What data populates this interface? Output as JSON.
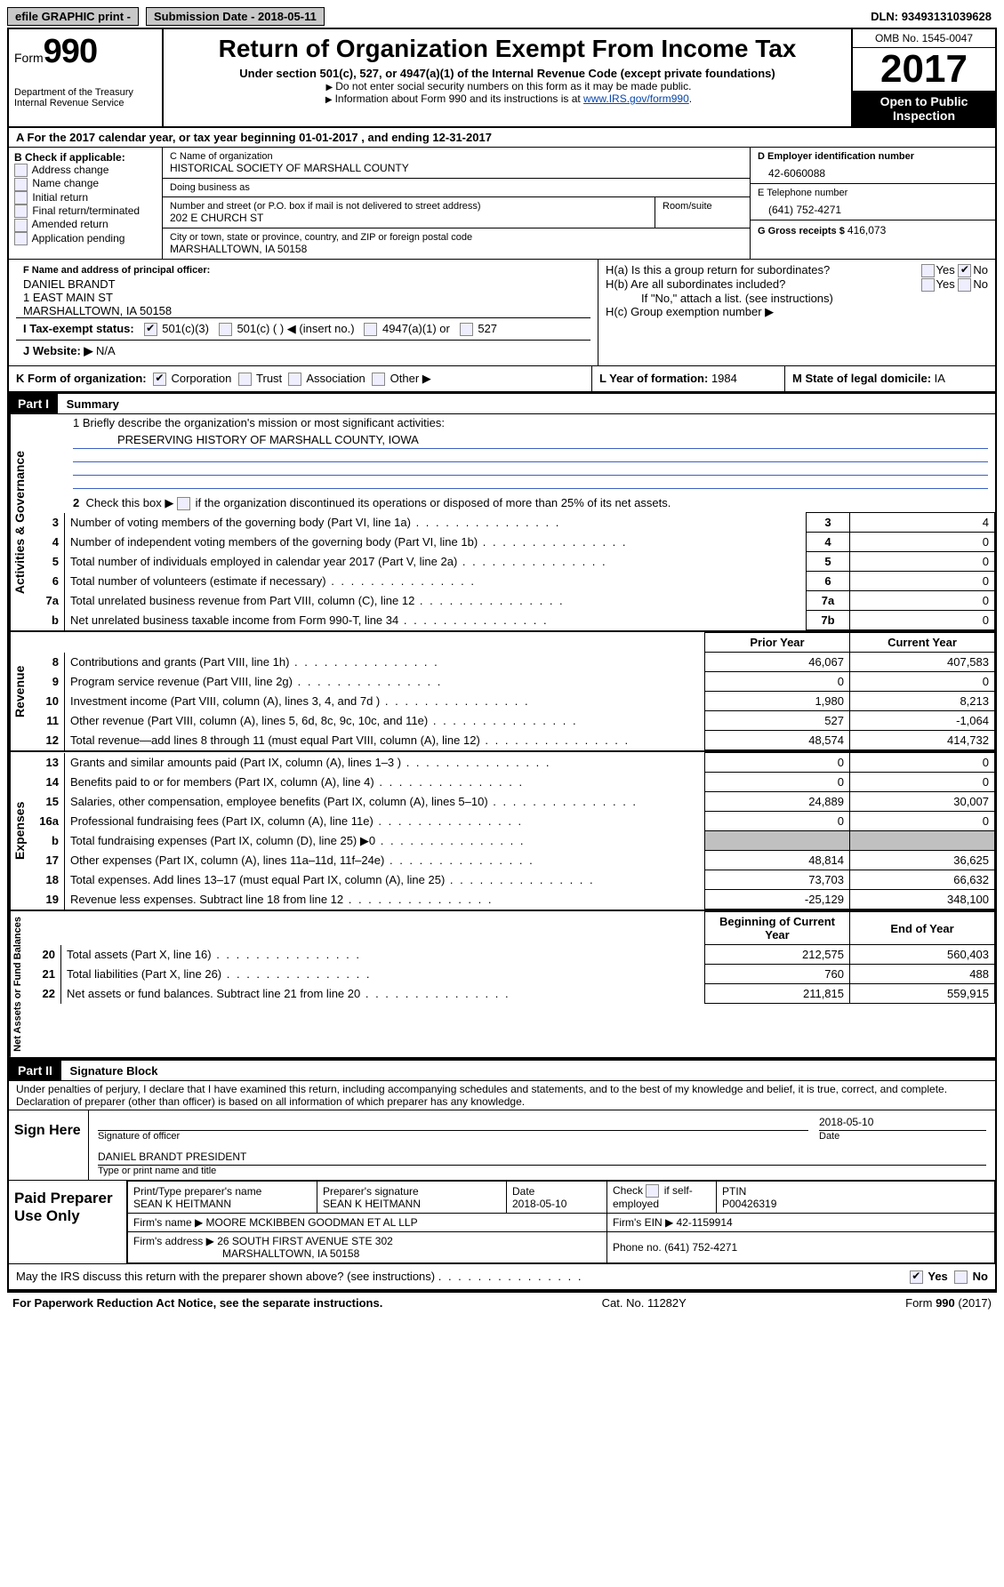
{
  "topbar": {
    "efile": "efile GRAPHIC print - ",
    "submission_label": "Submission Date - ",
    "submission_date": "2018-05-11",
    "dln_label": "DLN: ",
    "dln": "93493131039628"
  },
  "header": {
    "form_label": "Form",
    "form_number": "990",
    "dept": "Department of the Treasury",
    "irs": "Internal Revenue Service",
    "title": "Return of Organization Exempt From Income Tax",
    "subtitle": "Under section 501(c), 527, or 4947(a)(1) of the Internal Revenue Code (except private foundations)",
    "note1": "Do not enter social security numbers on this form as it may be made public.",
    "note2_prefix": "Information about Form 990 and its instructions is at ",
    "note2_link": "www.IRS.gov/form990",
    "omb": "OMB No. 1545-0047",
    "year": "2017",
    "open": "Open to Public Inspection"
  },
  "rowA": {
    "prefix": "A  For the 2017 calendar year, or tax year beginning ",
    "begin": "01-01-2017",
    "mid": "   , and ending ",
    "end": "12-31-2017"
  },
  "colB": {
    "title": "B Check if applicable:",
    "items": [
      "Address change",
      "Name change",
      "Initial return",
      "Final return/terminated",
      "Amended return",
      "Application pending"
    ]
  },
  "colC": {
    "name_label": "C Name of organization",
    "name": "HISTORICAL SOCIETY OF MARSHALL COUNTY",
    "dba_label": "Doing business as",
    "dba": "",
    "street_label": "Number and street (or P.O. box if mail is not delivered to street address)",
    "room_label": "Room/suite",
    "street": "202 E CHURCH ST",
    "city_label": "City or town, state or province, country, and ZIP or foreign postal code",
    "city": "MARSHALLTOWN, IA  50158"
  },
  "colD": {
    "ein_label": "D Employer identification number",
    "ein": "42-6060088",
    "phone_label": "E Telephone number",
    "phone": "(641) 752-4271",
    "gross_label": "G Gross receipts $ ",
    "gross": "416,073"
  },
  "rowF": {
    "label": "F  Name and address of principal officer:",
    "name": "DANIEL BRANDT",
    "addr1": "1 EAST MAIN ST",
    "addr2": "MARSHALLTOWN, IA  50158"
  },
  "rowH": {
    "ha": "H(a)  Is this a group return for subordinates?",
    "hb": "H(b)  Are all subordinates included?",
    "hb_note": "If \"No,\" attach a list. (see instructions)",
    "hc": "H(c)  Group exemption number ▶",
    "yes": "Yes",
    "no": "No"
  },
  "rowI": {
    "label": "I  Tax-exempt status:",
    "o1": "501(c)(3)",
    "o2": "501(c) (  ) ◀ (insert no.)",
    "o3": "4947(a)(1) or",
    "o4": "527"
  },
  "rowJ": {
    "label": "J  Website: ▶ ",
    "val": "N/A"
  },
  "rowK": {
    "label": "K Form of organization:",
    "opts": [
      "Corporation",
      "Trust",
      "Association",
      "Other ▶"
    ],
    "l_label": "L Year of formation: ",
    "l_val": "1984",
    "m_label": "M State of legal domicile: ",
    "m_val": "IA"
  },
  "part1": {
    "tag": "Part I",
    "title": "Summary",
    "l1": "1  Briefly describe the organization's mission or most significant activities:",
    "mission": "PRESERVING HISTORY OF MARSHALL COUNTY, IOWA",
    "l2": "2  Check this box ▶        if the organization discontinued its operations or disposed of more than 25% of its net assets."
  },
  "vlabels": {
    "gov": "Activities & Governance",
    "rev": "Revenue",
    "exp": "Expenses",
    "net": "Net Assets or Fund Balances"
  },
  "govTable": [
    {
      "n": "3",
      "desc": "Number of voting members of the governing body (Part VI, line 1a)",
      "col": "3",
      "val": "4"
    },
    {
      "n": "4",
      "desc": "Number of independent voting members of the governing body (Part VI, line 1b)",
      "col": "4",
      "val": "0"
    },
    {
      "n": "5",
      "desc": "Total number of individuals employed in calendar year 2017 (Part V, line 2a)",
      "col": "5",
      "val": "0"
    },
    {
      "n": "6",
      "desc": "Total number of volunteers (estimate if necessary)",
      "col": "6",
      "val": "0"
    },
    {
      "n": "7a",
      "desc": "Total unrelated business revenue from Part VIII, column (C), line 12",
      "col": "7a",
      "val": "0"
    },
    {
      "n": "b",
      "desc": "Net unrelated business taxable income from Form 990-T, line 34",
      "col": "7b",
      "val": "0"
    }
  ],
  "yearHdr": {
    "prior": "Prior Year",
    "current": "Current Year",
    "boy": "Beginning of Current Year",
    "eoy": "End of Year"
  },
  "revTable": [
    {
      "n": "8",
      "desc": "Contributions and grants (Part VIII, line 1h)",
      "p": "46,067",
      "c": "407,583"
    },
    {
      "n": "9",
      "desc": "Program service revenue (Part VIII, line 2g)",
      "p": "0",
      "c": "0"
    },
    {
      "n": "10",
      "desc": "Investment income (Part VIII, column (A), lines 3, 4, and 7d )",
      "p": "1,980",
      "c": "8,213"
    },
    {
      "n": "11",
      "desc": "Other revenue (Part VIII, column (A), lines 5, 6d, 8c, 9c, 10c, and 11e)",
      "p": "527",
      "c": "-1,064"
    },
    {
      "n": "12",
      "desc": "Total revenue—add lines 8 through 11 (must equal Part VIII, column (A), line 12)",
      "p": "48,574",
      "c": "414,732"
    }
  ],
  "expTable": [
    {
      "n": "13",
      "desc": "Grants and similar amounts paid (Part IX, column (A), lines 1–3 )",
      "p": "0",
      "c": "0"
    },
    {
      "n": "14",
      "desc": "Benefits paid to or for members (Part IX, column (A), line 4)",
      "p": "0",
      "c": "0"
    },
    {
      "n": "15",
      "desc": "Salaries, other compensation, employee benefits (Part IX, column (A), lines 5–10)",
      "p": "24,889",
      "c": "30,007"
    },
    {
      "n": "16a",
      "desc": "Professional fundraising fees (Part IX, column (A), line 11e)",
      "p": "0",
      "c": "0"
    },
    {
      "n": "b",
      "desc": "Total fundraising expenses (Part IX, column (D), line 25) ▶0",
      "p": "grey",
      "c": "grey"
    },
    {
      "n": "17",
      "desc": "Other expenses (Part IX, column (A), lines 11a–11d, 11f–24e)",
      "p": "48,814",
      "c": "36,625"
    },
    {
      "n": "18",
      "desc": "Total expenses. Add lines 13–17 (must equal Part IX, column (A), line 25)",
      "p": "73,703",
      "c": "66,632"
    },
    {
      "n": "19",
      "desc": "Revenue less expenses. Subtract line 18 from line 12",
      "p": "-25,129",
      "c": "348,100"
    }
  ],
  "netTable": [
    {
      "n": "20",
      "desc": "Total assets (Part X, line 16)",
      "p": "212,575",
      "c": "560,403"
    },
    {
      "n": "21",
      "desc": "Total liabilities (Part X, line 26)",
      "p": "760",
      "c": "488"
    },
    {
      "n": "22",
      "desc": "Net assets or fund balances. Subtract line 21 from line 20",
      "p": "211,815",
      "c": "559,915"
    }
  ],
  "part2": {
    "tag": "Part II",
    "title": "Signature Block",
    "perjury": "Under penalties of perjury, I declare that I have examined this return, including accompanying schedules and statements, and to the best of my knowledge and belief, it is true, correct, and complete. Declaration of preparer (other than officer) is based on all information of which preparer has any knowledge.",
    "sign_here": "Sign Here",
    "sig_officer": "Signature of officer",
    "sig_date": "2018-05-10",
    "date_lbl": "Date",
    "officer_name": "DANIEL BRANDT PRESIDENT",
    "type_name": "Type or print name and title",
    "paid": "Paid Preparer Use Only",
    "prep_name_lbl": "Print/Type preparer's name",
    "prep_name": "SEAN K HEITMANN",
    "prep_sig_lbl": "Preparer's signature",
    "prep_sig": "SEAN K HEITMANN",
    "prep_date_lbl": "Date",
    "prep_date": "2018-05-10",
    "self_emp": "Check        if self-employed",
    "ptin_lbl": "PTIN",
    "ptin": "P00426319",
    "firm_name_lbl": "Firm's name     ▶ ",
    "firm_name": "MOORE MCKIBBEN GOODMAN ET AL LLP",
    "firm_ein_lbl": "Firm's EIN ▶ ",
    "firm_ein": "42-1159914",
    "firm_addr_lbl": "Firm's address ▶ ",
    "firm_addr1": "26 SOUTH FIRST AVENUE STE 302",
    "firm_addr2": "MARSHALLTOWN, IA  50158",
    "firm_phone_lbl": "Phone no. ",
    "firm_phone": "(641) 752-4271",
    "discuss": "May the IRS discuss this return with the preparer shown above? (see instructions)",
    "yes": "Yes",
    "no": "No"
  },
  "footer": {
    "pra": "For Paperwork Reduction Act Notice, see the separate instructions.",
    "cat": "Cat. No. 11282Y",
    "form": "Form 990 (2017)"
  }
}
